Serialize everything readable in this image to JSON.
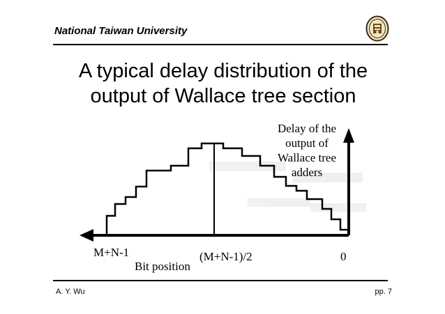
{
  "header": {
    "institution": "National Taiwan University",
    "logo_icon": "university-seal-icon"
  },
  "slide": {
    "title_line1": "A typical delay distribution of the",
    "title_line2": "output of Wallace tree section"
  },
  "diagram": {
    "y_axis_label": [
      "Delay of the",
      "output of",
      "Wallace tree",
      "adders"
    ],
    "x_axis_label": "Bit position",
    "ticks": {
      "left": "M+N-1",
      "middle": "(M+N-1)/2",
      "right": "0"
    }
  },
  "footer": {
    "author": "A. Y. Wu",
    "page": "pp. 7"
  }
}
